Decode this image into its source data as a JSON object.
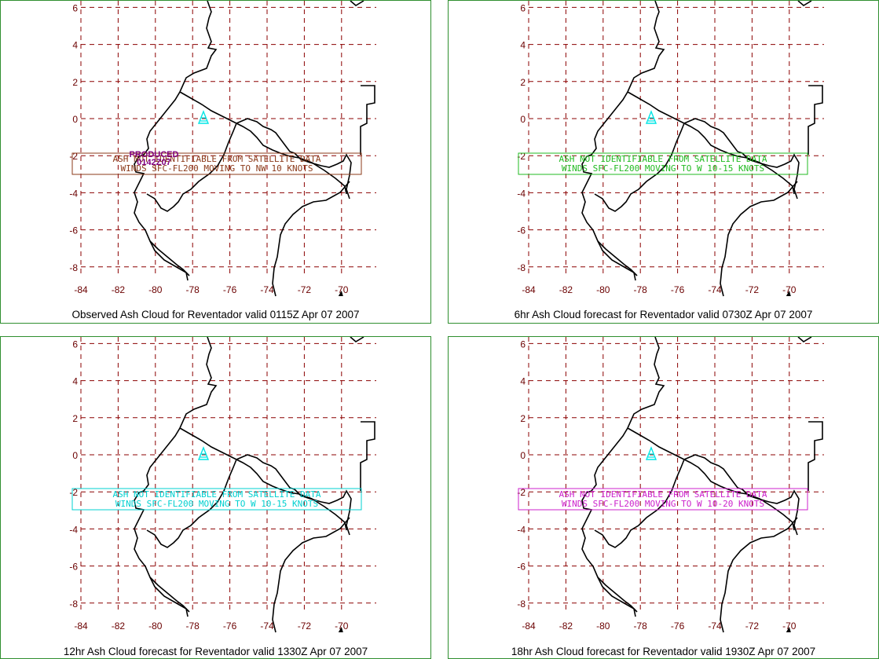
{
  "map": {
    "lon_labels": [
      "-84",
      "-82",
      "-80",
      "-78",
      "-76",
      "-74",
      "-72",
      "-70"
    ],
    "lat_labels": [
      "6",
      "4",
      "2",
      "0",
      "-2",
      "-4",
      "-6",
      "-8"
    ],
    "colors": {
      "grid": "#8b0000",
      "coast": "#000000",
      "volcano": "#00e5e5",
      "frame": "#2f8f2f"
    },
    "volcano_icon": "volcano-triangle-icon"
  },
  "panels": [
    {
      "caption": "Observed Ash Cloud for Reventador valid 0115Z Apr 07 2007",
      "color": "#8b3a1a",
      "line1": "ASH NOT IDENTIFIABLE FROM SATELLITE DATA",
      "line2": "WINDS SFC-FL200 MOVING TO NW 10 KNOTS",
      "annotation_color": "#800080",
      "annotation_line1": "PRODUCED",
      "annotation_line2": "0142Z07"
    },
    {
      "caption": "6hr Ash Cloud forecast for Reventador valid 0730Z Apr 07 2007",
      "color": "#22bb22",
      "line1": "ASH NOT IDENTIFIABLE FROM SATELLITE DATA",
      "line2": "WINDS SFC-FL200 MOVING TO W 10-15 KNOTS"
    },
    {
      "caption": "12hr Ash Cloud forecast for Reventador valid 1330Z Apr 07 2007",
      "color": "#00d0d0",
      "line1": "ASH NOT IDENTIFIABLE FROM SATELLITE DATA",
      "line2": "WINDS SFC-FL200 MOVING TO W 10-15 KNOTS"
    },
    {
      "caption": "18hr Ash Cloud forecast for Reventador valid 1930Z Apr 07 2007",
      "color": "#cc22cc",
      "line1": "ASH NOT IDENTIFIABLE FROM SATELLITE DATA",
      "line2": "WINDS SFC-FL200 MOVING TO W 10-20 KNOTS"
    }
  ]
}
